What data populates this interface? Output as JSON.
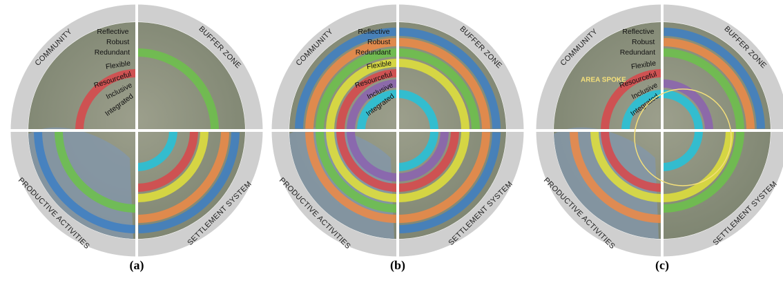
{
  "panels": [
    {
      "caption": "(a)",
      "quadrants": [
        "COMMUNITY",
        "BUFFER ZONE",
        "SETTLEMENT SYSTEM",
        "PRODUCTIVE ACTIVITIES"
      ],
      "rings": [
        "Reflective",
        "Robust",
        "Redundant",
        "Flexible",
        "Resourceful",
        "Inclusive",
        "Integrated"
      ]
    },
    {
      "caption": "(b)",
      "quadrants": [
        "COMMUNITY",
        "BUFFER ZONE",
        "SETTLEMENT SYSTEM",
        "PRODUCTIVE ACTIVITIES"
      ],
      "rings": [
        "Reflective",
        "Robust",
        "Redundant",
        "Flexible",
        "Resourceful",
        "Inclusive",
        "Integrated"
      ]
    },
    {
      "caption": "(c)",
      "quadrants": [
        "COMMUNITY",
        "BUFFER ZONE",
        "SETTLEMENT SYSTEM",
        "PRODUCTIVE ACTIVITIES"
      ],
      "rings": [
        "Reflective",
        "Robust",
        "Redundant",
        "Flexible",
        "Resourceful",
        "Inclusive",
        "Integrated"
      ],
      "annotation": "AREA SPOKE"
    }
  ]
}
